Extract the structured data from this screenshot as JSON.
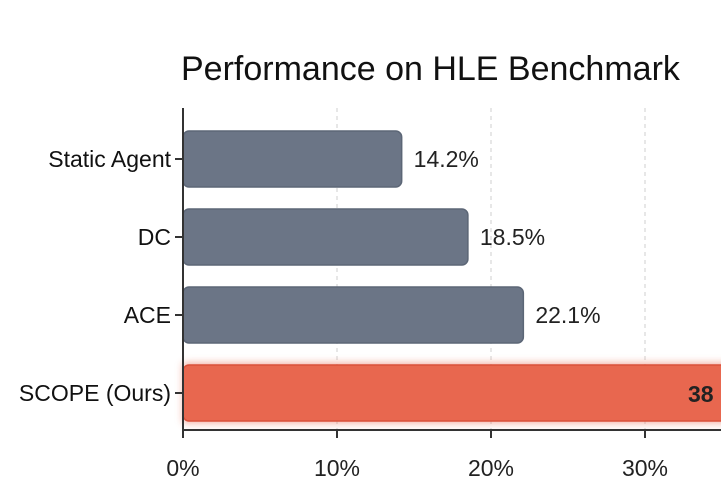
{
  "chart_data": {
    "type": "bar",
    "orientation": "horizontal",
    "title": "Performance on HLE Benchmark",
    "categories": [
      "Static Agent",
      "DC",
      "ACE",
      "SCOPE (Ours)"
    ],
    "values": [
      14.2,
      18.5,
      22.1,
      38
    ],
    "value_labels": [
      "14.2%",
      "18.5%",
      "22.1%",
      "38"
    ],
    "xlabel": "",
    "ylabel": "",
    "xlim": [
      0,
      35
    ],
    "x_ticks": [
      "0%",
      "10%",
      "20%",
      "30%"
    ],
    "x_tick_values": [
      0,
      10,
      20,
      30
    ],
    "grid": "vertical dashed",
    "colors": {
      "baseline": "#6b7586",
      "highlight": "#e8674f"
    }
  }
}
